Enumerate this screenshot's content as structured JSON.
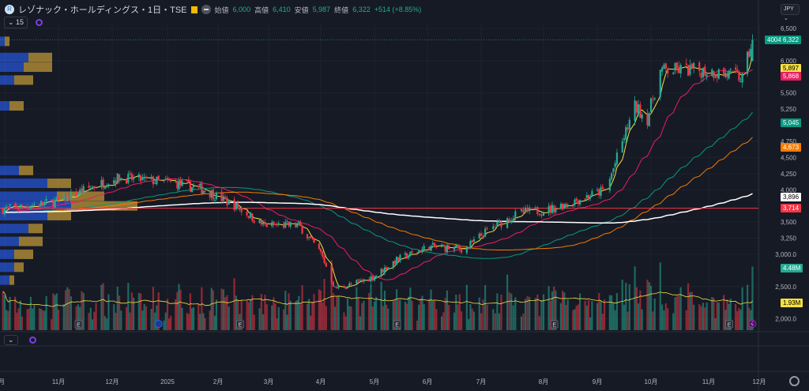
{
  "header": {
    "title": "レゾナック・ホールディングス・1日・TSE",
    "open_label": "始値",
    "open": "6,000",
    "high_label": "高値",
    "high": "6,410",
    "low_label": "安値",
    "low": "5,987",
    "close_label": "終値",
    "close": "6,322",
    "change": "+514 (+8.85%)",
    "logo_letter": "R"
  },
  "toolbar": {
    "collapse_count": "15",
    "currency": "JPY",
    "pane_collapse": "⌄"
  },
  "tags": {
    "code": "4004",
    "last": "6,322",
    "ma_short": "5,897",
    "ma_mid": "5,868",
    "ma_75": "5,045",
    "ma_100": "4,673",
    "ma_200": "3,896",
    "hline": "3,714",
    "volume": "4.48M",
    "volume_avg": "1.93M"
  },
  "colors": {
    "up": "#22ab94",
    "down": "#f23645",
    "ma_short": "#f5e042",
    "ma_mid": "#e91e63",
    "ma_75": "#089981",
    "ma_100": "#f57c00",
    "ma_200": "#ffffff",
    "hline": "#f23645"
  },
  "chart_data": {
    "type": "candlestick",
    "title": "レゾナック・ホールディングス・1日・TSE",
    "ylim": [
      2000,
      6500
    ],
    "yticks": [
      "6,500",
      "6,000",
      "5,500",
      "5,250",
      "4,750",
      "4,500",
      "4,250",
      "4,000",
      "3,500",
      "3,250",
      "3,000.0",
      "2,500.0",
      "2,000.0"
    ],
    "ytick_values": [
      6500,
      6000,
      5500,
      5250,
      4750,
      4500,
      4250,
      4000,
      3500,
      3250,
      3000,
      2500,
      2000
    ],
    "xticks": [
      "月",
      "11月",
      "12月",
      "2025",
      "2月",
      "3月",
      "4月",
      "5月",
      "6月",
      "7月",
      "8月",
      "9月",
      "10月",
      "11月",
      "12月"
    ],
    "xtick_months": [
      "2024-10",
      "2024-11",
      "2024-12",
      "2025-01",
      "2025-02",
      "2025-03",
      "2025-04",
      "2025-05",
      "2025-06",
      "2025-07",
      "2025-08",
      "2025-09",
      "2025-10",
      "2025-11",
      "2025-12"
    ],
    "close_keypoints": [
      [
        "2024-09-30",
        3700
      ],
      [
        "2024-11-01",
        3820
      ],
      [
        "2024-11-21",
        4060
      ],
      [
        "2024-12-05",
        4190
      ],
      [
        "2025-01-06",
        4100
      ],
      [
        "2025-01-24",
        4000
      ],
      [
        "2025-02-12",
        3730
      ],
      [
        "2025-02-26",
        3450
      ],
      [
        "2025-03-19",
        3450
      ],
      [
        "2025-04-01",
        3020
      ],
      [
        "2025-04-09",
        2470
      ],
      [
        "2025-04-18",
        2530
      ],
      [
        "2025-05-01",
        2660
      ],
      [
        "2025-05-13",
        2900
      ],
      [
        "2025-06-02",
        3120
      ],
      [
        "2025-06-22",
        3080
      ],
      [
        "2025-07-05",
        3390
      ],
      [
        "2025-07-20",
        3640
      ],
      [
        "2025-08-05",
        3700
      ],
      [
        "2025-08-24",
        3880
      ],
      [
        "2025-09-06",
        4000
      ],
      [
        "2025-09-15",
        4740
      ],
      [
        "2025-09-22",
        5290
      ],
      [
        "2025-09-29",
        5100
      ],
      [
        "2025-10-06",
        5840
      ],
      [
        "2025-10-16",
        5860
      ],
      [
        "2025-11-02",
        5840
      ],
      [
        "2025-11-14",
        5780
      ],
      [
        "2025-11-21",
        5720
      ],
      [
        "2025-11-27",
        6322
      ]
    ],
    "horizontal_line": 3714,
    "moving_averages": [
      {
        "name": "MA short",
        "period": 5
      },
      {
        "name": "MA 25",
        "period": 25
      },
      {
        "name": "MA 75",
        "period": 75
      },
      {
        "name": "MA 100",
        "period": 100
      },
      {
        "name": "MA 200",
        "period": 200
      }
    ],
    "volume_profile": [
      {
        "price": 6300,
        "up": 0.1,
        "down": 0.1
      },
      {
        "price": 6050,
        "up": 0.6,
        "down": 0.5
      },
      {
        "price": 5900,
        "up": 0.5,
        "down": 0.6
      },
      {
        "price": 5700,
        "up": 0.3,
        "down": 0.4
      },
      {
        "price": 5300,
        "up": 0.2,
        "down": 0.3
      },
      {
        "price": 4300,
        "up": 0.4,
        "down": 0.3
      },
      {
        "price": 4100,
        "up": 1.0,
        "down": 0.5
      },
      {
        "price": 3900,
        "up": 1.2,
        "down": 1.0
      },
      {
        "price": 3750,
        "up": 1.5,
        "down": 1.4
      },
      {
        "price": 3600,
        "up": 1.0,
        "down": 0.5
      },
      {
        "price": 3400,
        "up": 0.6,
        "down": 0.3
      },
      {
        "price": 3200,
        "up": 0.4,
        "down": 0.5
      },
      {
        "price": 3000,
        "up": 0.3,
        "down": 0.4
      },
      {
        "price": 2800,
        "up": 0.3,
        "down": 0.2
      },
      {
        "price": 2600,
        "up": 0.2,
        "down": 0.1
      }
    ],
    "events": [
      {
        "type": "E",
        "date": "2024-11-12"
      },
      {
        "type": "D",
        "date": "2024-12-27"
      },
      {
        "type": "E",
        "date": "2025-02-13"
      },
      {
        "type": "E",
        "date": "2025-05-14"
      },
      {
        "type": "E",
        "date": "2025-08-07"
      },
      {
        "type": "E",
        "date": "2025-11-13"
      },
      {
        "type": "S",
        "date": "2025-11-27"
      }
    ]
  }
}
